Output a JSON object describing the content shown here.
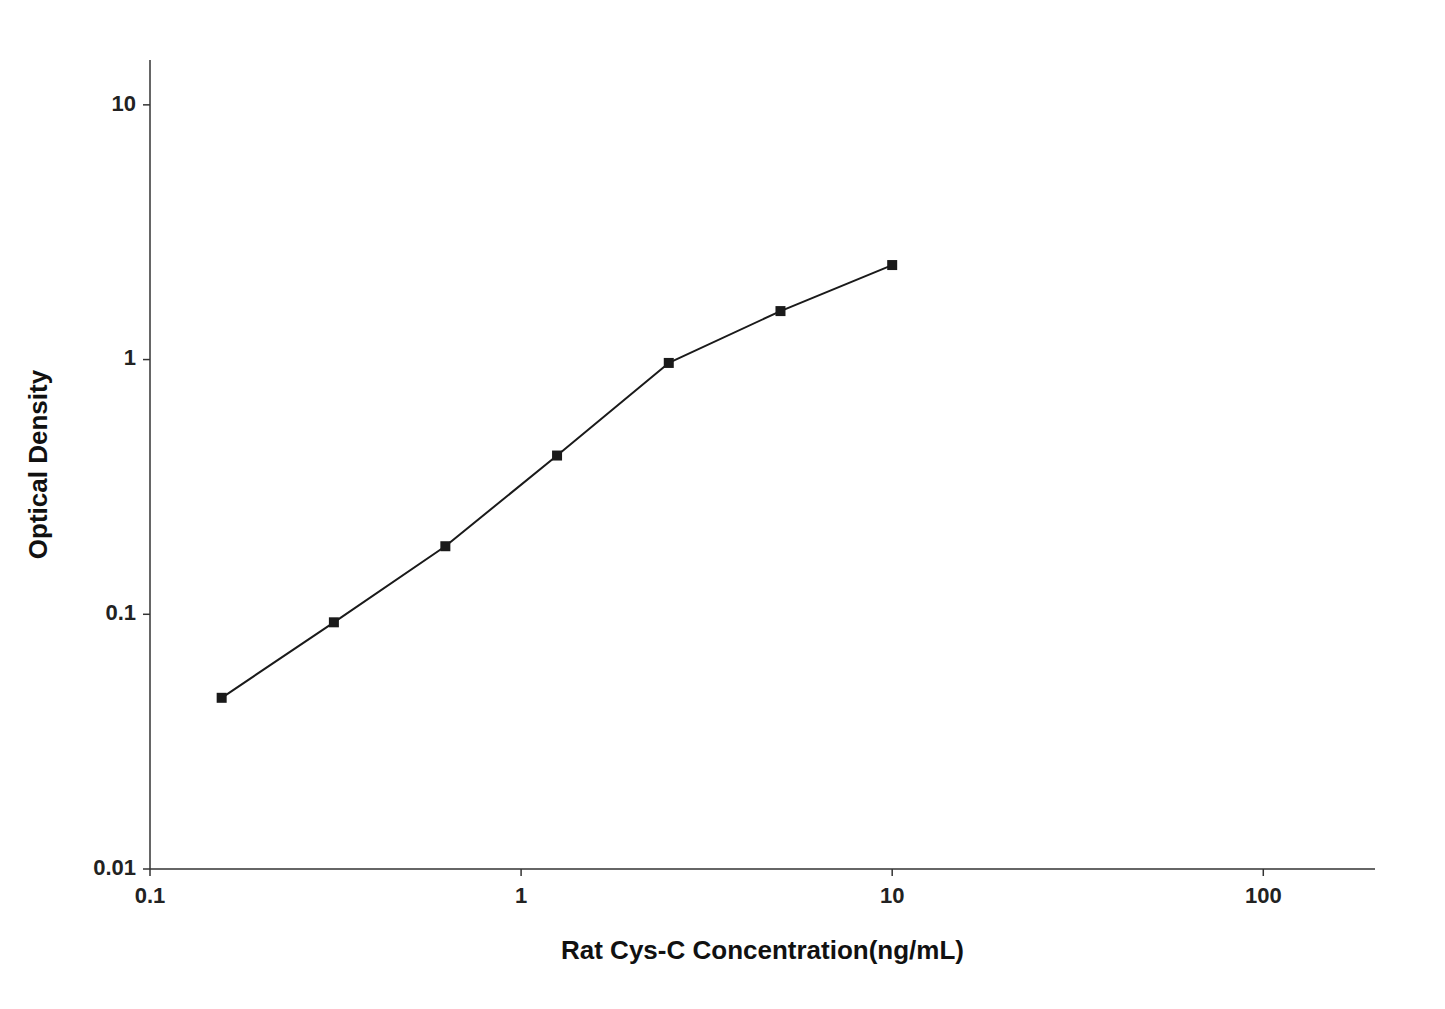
{
  "chart_data": {
    "type": "line",
    "x": [
      0.156,
      0.313,
      0.625,
      1.25,
      2.5,
      5.0,
      10.0
    ],
    "values": [
      0.047,
      0.093,
      0.185,
      0.42,
      0.97,
      1.55,
      2.35
    ],
    "xlabel": "Rat Cys-C Concentration(ng/mL)",
    "ylabel": "Optical Density",
    "xlim": [
      0.1,
      200
    ],
    "ylim": [
      0.01,
      15
    ],
    "xticks": [
      0.1,
      1,
      10,
      100
    ],
    "yticks": [
      0.01,
      0.1,
      1,
      10
    ],
    "log": true,
    "grid": false,
    "color": "#1a1a1a",
    "marker": "square"
  }
}
